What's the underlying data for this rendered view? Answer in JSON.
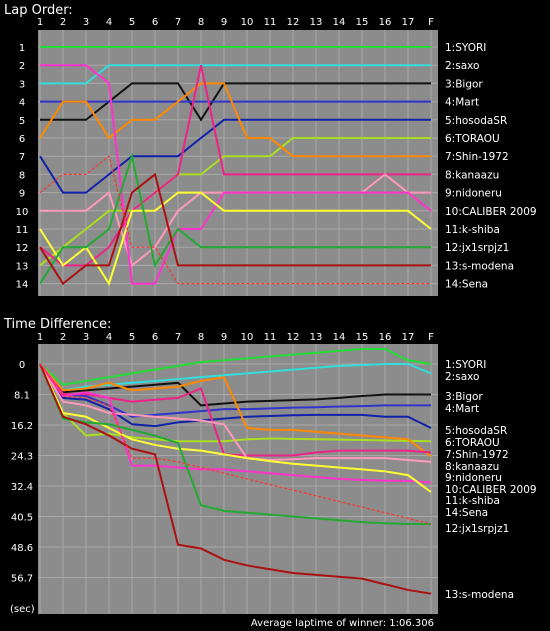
{
  "chart_data": [
    {
      "type": "line",
      "title": "Lap Order:",
      "x": [
        "1",
        "2",
        "3",
        "4",
        "5",
        "6",
        "7",
        "8",
        "9",
        "10",
        "11",
        "12",
        "13",
        "14",
        "15",
        "16",
        "17",
        "F"
      ],
      "y_ticks": [
        "1",
        "2",
        "3",
        "4",
        "5",
        "6",
        "7",
        "8",
        "9",
        "10",
        "11",
        "12",
        "13",
        "14"
      ],
      "ylim": [
        1,
        14
      ],
      "grid": true,
      "series": [
        {
          "name": "1:SYORI",
          "color": "#22dd33",
          "values": [
            1,
            1,
            1,
            1,
            1,
            1,
            1,
            1,
            1,
            1,
            1,
            1,
            1,
            1,
            1,
            1,
            1,
            1
          ]
        },
        {
          "name": "2:saxo",
          "color": "#33dddd",
          "values": [
            3,
            3,
            3,
            2,
            2,
            2,
            2,
            2,
            2,
            2,
            2,
            2,
            2,
            2,
            2,
            2,
            2,
            2
          ]
        },
        {
          "name": "3:Bigor",
          "color": "#111111",
          "values": [
            5,
            5,
            5,
            4,
            3,
            3,
            3,
            5,
            3,
            3,
            3,
            3,
            3,
            3,
            3,
            3,
            3,
            3
          ]
        },
        {
          "name": "4:Mart",
          "color": "#3333cc",
          "values": [
            4,
            4,
            4,
            4,
            4,
            4,
            4,
            4,
            4,
            4,
            4,
            4,
            4,
            4,
            4,
            4,
            4,
            4
          ]
        },
        {
          "name": "5:hosodaSR",
          "color": "#1122aa",
          "values": [
            7,
            9,
            9,
            8,
            7,
            7,
            7,
            6,
            5,
            5,
            5,
            5,
            5,
            5,
            5,
            5,
            5,
            5
          ]
        },
        {
          "name": "6:TORAOU",
          "color": "#aadd22",
          "values": [
            13,
            12,
            11,
            10,
            10,
            9,
            8,
            8,
            7,
            7,
            7,
            6,
            6,
            6,
            6,
            6,
            6,
            6
          ]
        },
        {
          "name": "7:Shin-1972",
          "color": "#ff8800",
          "values": [
            6,
            4,
            4,
            6,
            5,
            5,
            4,
            3,
            3,
            6,
            6,
            7,
            7,
            7,
            7,
            7,
            7,
            7
          ]
        },
        {
          "name": "8:kanaazu",
          "color": "#ee2288",
          "values": [
            12,
            13,
            13,
            12,
            10,
            9,
            8,
            2,
            8,
            8,
            8,
            8,
            8,
            8,
            8,
            8,
            8,
            8
          ]
        },
        {
          "name": "9:nidoneru",
          "color": "#ff99bb",
          "values": [
            10,
            10,
            10,
            9,
            13,
            12,
            10,
            9,
            9,
            9,
            9,
            9,
            9,
            9,
            9,
            8,
            9,
            9
          ]
        },
        {
          "name": "10:CALIBER 2009",
          "color": "#ff33cc",
          "values": [
            2,
            2,
            2,
            3,
            14,
            14,
            11,
            11,
            9,
            9,
            9,
            9,
            9,
            9,
            9,
            9,
            9,
            10
          ]
        },
        {
          "name": "11:k-shiba",
          "color": "#ffff33",
          "values": [
            11,
            13,
            12,
            14,
            10,
            10,
            9,
            9,
            10,
            10,
            10,
            10,
            10,
            10,
            10,
            10,
            10,
            11
          ]
        },
        {
          "name": "12:jx1srpjz1",
          "color": "#22aa33",
          "values": [
            14,
            12,
            12,
            11,
            7,
            13,
            11,
            12,
            12,
            12,
            12,
            12,
            12,
            12,
            12,
            12,
            12,
            12
          ]
        },
        {
          "name": "13:s-modena",
          "color": "#aa1111",
          "values": [
            12,
            14,
            13,
            13,
            9,
            8,
            13,
            13,
            13,
            13,
            13,
            13,
            13,
            13,
            13,
            13,
            13,
            13
          ]
        },
        {
          "name": "14:Sena",
          "color": "#ff3333",
          "values": [
            9,
            8,
            8,
            7,
            12,
            12,
            14,
            14,
            14,
            14,
            14,
            14,
            14,
            14,
            14,
            14,
            14,
            14
          ]
        }
      ]
    },
    {
      "type": "line",
      "title": "Time Difference:",
      "ylabel": "(sec)",
      "x": [
        "1",
        "2",
        "3",
        "4",
        "5",
        "6",
        "7",
        "8",
        "9",
        "10",
        "11",
        "12",
        "13",
        "14",
        "15",
        "16",
        "17",
        "F"
      ],
      "y_ticks": [
        "0",
        "8.1",
        "16.2",
        "24.3",
        "32.4",
        "40.5",
        "48.6",
        "56.7"
      ],
      "ylim": [
        -3,
        62
      ],
      "grid": true,
      "footer": "Average laptime of winner: 1:06.306",
      "series": [
        {
          "name": "1:SYORI",
          "color": "#22dd33",
          "values": [
            0,
            5.5,
            4.5,
            3.5,
            2.5,
            1.5,
            0.5,
            -0.5,
            -1.0,
            -1.5,
            -2.0,
            -2.5,
            -3.0,
            -3.5,
            -4.0,
            -4.0,
            -1.0,
            0
          ]
        },
        {
          "name": "2:saxo",
          "color": "#33dddd",
          "values": [
            0,
            7.0,
            6.0,
            5.5,
            5.0,
            4.5,
            4.0,
            3.5,
            3.0,
            2.5,
            2.0,
            1.5,
            1.0,
            0.5,
            0.3,
            0.0,
            0.0,
            2.5
          ]
        },
        {
          "name": "3:Bigor",
          "color": "#111111",
          "values": [
            0,
            7.5,
            7.0,
            6.5,
            6.0,
            5.5,
            5.0,
            11.0,
            10.5,
            10.0,
            9.8,
            9.6,
            9.4,
            9.0,
            8.5,
            8.1,
            8.1,
            8.1
          ]
        },
        {
          "name": "4:Mart",
          "color": "#3333cc",
          "values": [
            0,
            8.0,
            8.5,
            11.0,
            14.0,
            13.5,
            13.0,
            12.5,
            12.0,
            12.0,
            11.8,
            11.6,
            11.5,
            11.3,
            11.2,
            11.0,
            11.0,
            11.0
          ]
        },
        {
          "name": "5:hosodaSR",
          "color": "#1122aa",
          "values": [
            0,
            9.0,
            9.5,
            12.0,
            16.0,
            16.5,
            15.5,
            15.0,
            14.5,
            14.0,
            13.8,
            13.6,
            13.5,
            13.5,
            13.5,
            14.0,
            14.0,
            17.0
          ]
        },
        {
          "name": "6:TORAOU",
          "color": "#aadd22",
          "values": [
            0,
            13.0,
            19.0,
            18.5,
            19.5,
            20.0,
            20.5,
            20.5,
            20.5,
            20.0,
            19.8,
            19.9,
            20.0,
            20.1,
            20.2,
            20.3,
            20.4,
            20.5
          ]
        },
        {
          "name": "7:Shin-1972",
          "color": "#ff8800",
          "values": [
            0,
            7.0,
            6.5,
            5.0,
            7.0,
            6.5,
            6.0,
            4.5,
            3.5,
            17.0,
            17.5,
            17.5,
            18.0,
            18.5,
            19.0,
            19.5,
            20.0,
            24.5
          ]
        },
        {
          "name": "8:kanaazu",
          "color": "#ee2288",
          "values": [
            0,
            8.0,
            8.0,
            9.0,
            10.0,
            9.5,
            9.0,
            6.5,
            24.0,
            24.3,
            24.3,
            24.3,
            23.5,
            23.0,
            23.0,
            23.0,
            23.0,
            23.5
          ]
        },
        {
          "name": "9:nidoneru",
          "color": "#ff99bb",
          "values": [
            0,
            10.0,
            11.0,
            13.0,
            13.5,
            14.0,
            14.5,
            15.0,
            16.0,
            25.0,
            25.5,
            25.3,
            25.0,
            25.0,
            25.0,
            25.0,
            25.5,
            26.0
          ]
        },
        {
          "name": "10:CALIBER 2009",
          "color": "#ff33cc",
          "values": [
            0,
            8.5,
            7.5,
            9.0,
            27.0,
            27.0,
            27.5,
            28.0,
            28.0,
            28.5,
            29.0,
            29.5,
            30.0,
            30.5,
            30.8,
            31.0,
            31.0,
            31.5
          ]
        },
        {
          "name": "11:k-shiba",
          "color": "#ffff33",
          "values": [
            0,
            13.0,
            14.0,
            17.0,
            20.0,
            21.5,
            22.5,
            23.0,
            24.0,
            25.0,
            25.8,
            26.5,
            27.0,
            27.5,
            28.0,
            28.5,
            29.5,
            34.0
          ]
        },
        {
          "name": "12:jx1srpjz1",
          "color": "#22aa33",
          "values": [
            0,
            14.5,
            15.5,
            16.0,
            17.5,
            19.0,
            21.0,
            37.5,
            39.0,
            39.5,
            40.0,
            40.5,
            41.0,
            41.5,
            42.0,
            42.3,
            42.5,
            42.5
          ]
        },
        {
          "name": "13:s-modena",
          "color": "#aa1111",
          "values": [
            0,
            14.0,
            16.0,
            19.0,
            22.5,
            24.0,
            48.0,
            49.0,
            52.0,
            53.5,
            54.5,
            55.5,
            56.0,
            56.5,
            57.0,
            58.5,
            60.0,
            61.0
          ]
        },
        {
          "name": "14:Sena",
          "color": "#ff3333",
          "values": [
            0,
            8.5,
            9.0,
            11.0,
            25.0,
            25.0,
            26.0,
            27.5,
            29.0,
            30.5,
            32.0,
            33.5,
            35.0,
            36.5,
            38.0,
            39.5,
            41.0,
            42.5
          ]
        }
      ]
    }
  ]
}
